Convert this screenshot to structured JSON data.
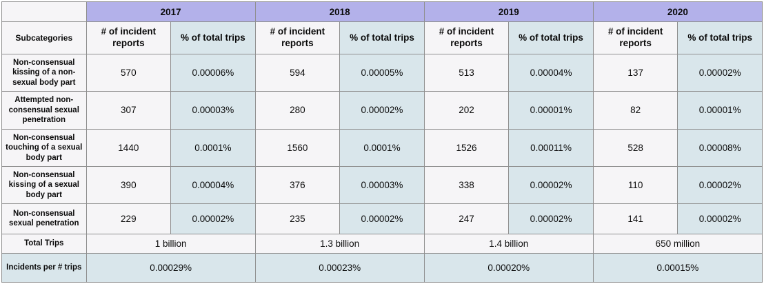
{
  "colors": {
    "year_header_bg": "#b3b1ea",
    "percent_bg": "#d9e6eb",
    "neutral_bg": "#f6f5f7",
    "border": "#8f8f8f",
    "text": "#0a0a0a"
  },
  "chart_data": {
    "type": "table",
    "title": "",
    "years": [
      "2017",
      "2018",
      "2019",
      "2020"
    ],
    "row_header": "Subcategories",
    "col_headers": {
      "reports": "# of incident reports",
      "pct": "% of total trips"
    },
    "rows": [
      {
        "label": "Non-consensual kissing of a non-sexual body part",
        "values": [
          "570",
          "0.00006%",
          "594",
          "0.00005%",
          "513",
          "0.00004%",
          "137",
          "0.00002%"
        ]
      },
      {
        "label": "Attempted non-consensual sexual penetration",
        "values": [
          "307",
          "0.00003%",
          "280",
          "0.00002%",
          "202",
          "0.00001%",
          "82",
          "0.00001%"
        ]
      },
      {
        "label": "Non-consensual touching of a sexual body part",
        "values": [
          "1440",
          "0.0001%",
          "1560",
          "0.0001%",
          "1526",
          "0.00011%",
          "528",
          "0.00008%"
        ]
      },
      {
        "label": "Non-consensual kissing of a sexual body part",
        "values": [
          "390",
          "0.00004%",
          "376",
          "0.00003%",
          "338",
          "0.00002%",
          "110",
          "0.00002%"
        ]
      },
      {
        "label": "Non-consensual sexual penetration",
        "values": [
          "229",
          "0.00002%",
          "235",
          "0.00002%",
          "247",
          "0.00002%",
          "141",
          "0.00002%"
        ]
      }
    ],
    "total_trips": {
      "label": "Total Trips",
      "values": [
        "1 billion",
        "1.3 billion",
        "1.4 billion",
        "650 million"
      ]
    },
    "incidents_per_trips": {
      "label": "Incidents per # trips",
      "values": [
        "0.00029%",
        "0.00023%",
        "0.00020%",
        "0.00015%"
      ]
    }
  }
}
